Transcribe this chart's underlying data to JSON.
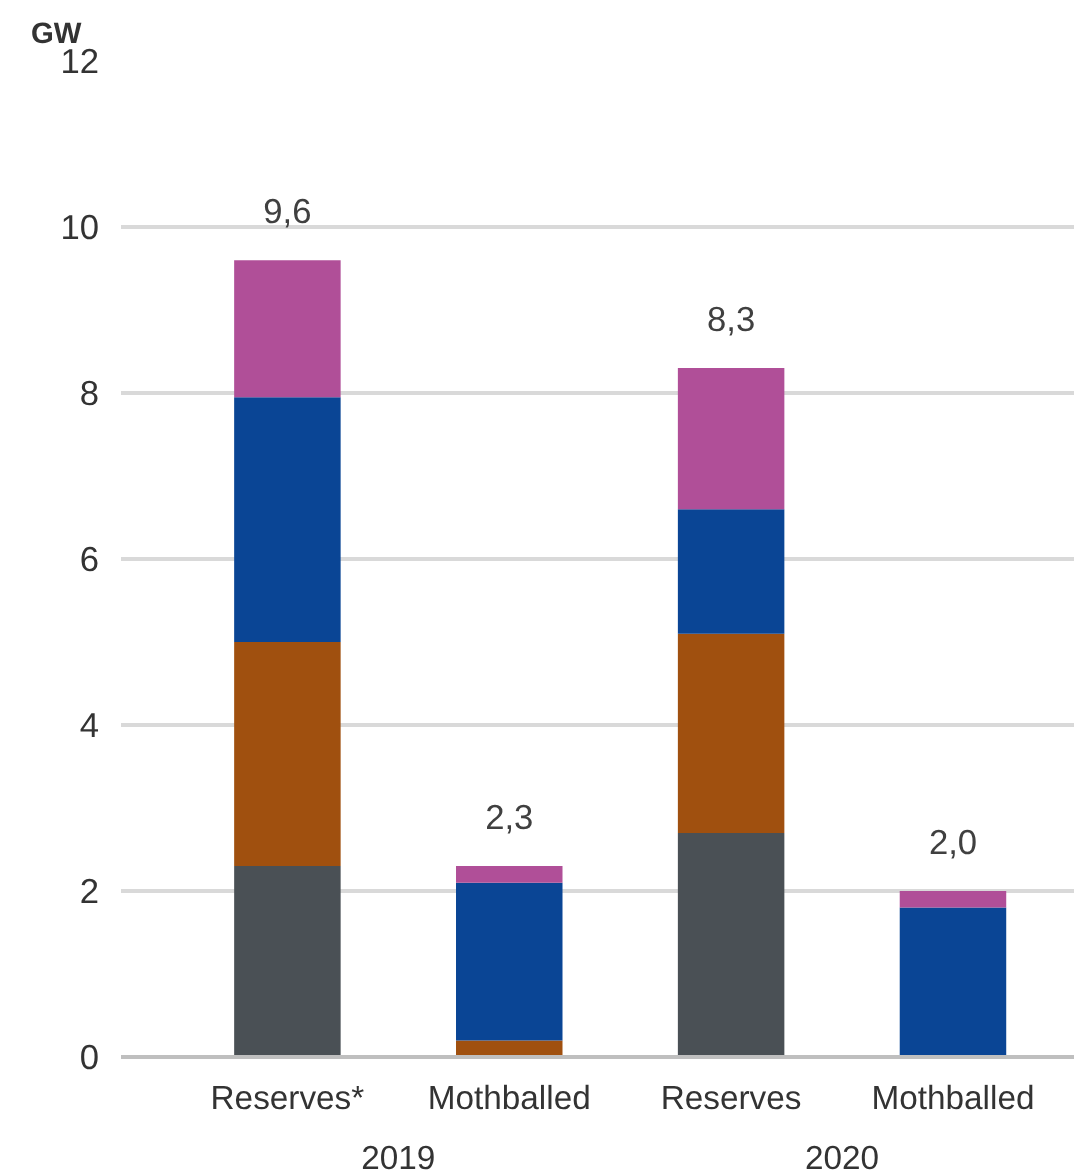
{
  "chart_data": {
    "type": "bar",
    "stacked": true,
    "ylabel": "GW",
    "categories": [
      "Reserves*",
      "Mothballed",
      "Reserves",
      "Mothballed"
    ],
    "series": [
      {
        "color": "#4a5055",
        "values": [
          2.3,
          0,
          2.7,
          0
        ]
      },
      {
        "color": "#a0500f",
        "values": [
          2.7,
          0.2,
          2.4,
          0
        ]
      },
      {
        "color": "#0a4595",
        "values": [
          2.95,
          1.9,
          1.5,
          1.8
        ]
      },
      {
        "color": "#b04f98",
        "values": [
          1.65,
          0.2,
          1.7,
          0.2
        ]
      }
    ],
    "totals": [
      "9,6",
      "2,3",
      "8,3",
      "2,0"
    ],
    "annotations": [
      "2019",
      "2020"
    ],
    "ylim": [
      0,
      12
    ],
    "yticks": [
      0,
      2,
      4,
      6,
      8,
      10,
      12
    ],
    "grid": "y"
  }
}
